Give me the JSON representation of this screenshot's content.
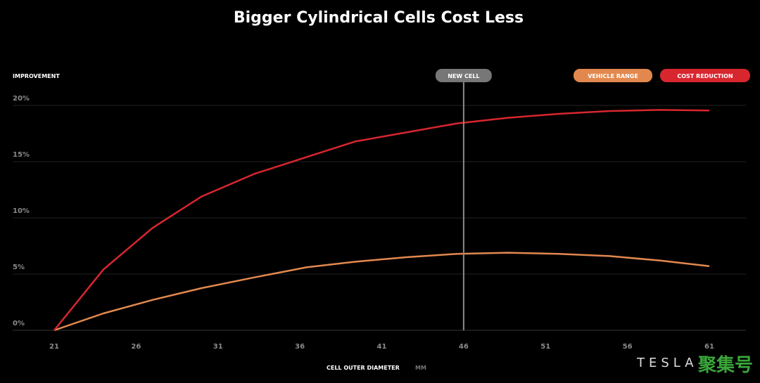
{
  "chart_data": {
    "type": "line",
    "title": "Bigger Cylindrical Cells Cost Less",
    "ylabel": "IMPROVEMENT",
    "xlabel": "CELL OUTER DIAMETER",
    "xlabel_unit": "MM",
    "xlim": [
      21,
      61
    ],
    "ylim": [
      0,
      20
    ],
    "xticks": [
      "21",
      "26",
      "31",
      "36",
      "41",
      "46",
      "51",
      "56",
      "61"
    ],
    "yticks": [
      "0%",
      "5%",
      "10%",
      "15%",
      "20%"
    ],
    "grid": true,
    "legend_position": "top-right",
    "annotation": {
      "label": "NEW CELL",
      "x": 46
    },
    "series": [
      {
        "name": "VEHICLE RANGE",
        "color": "#e2884f",
        "x": [
          21,
          24,
          27,
          30,
          33.2,
          36.4,
          39.4,
          42.5,
          45.6,
          48.7,
          51.8,
          54.9,
          58,
          61
        ],
        "y": [
          0,
          1.5,
          2.7,
          3.75,
          4.7,
          5.6,
          6.1,
          6.5,
          6.8,
          6.9,
          6.8,
          6.6,
          6.2,
          5.7
        ]
      },
      {
        "name": "COST REDUCTION",
        "color": "#d8262f",
        "x": [
          21,
          24,
          27,
          30,
          33.2,
          36.4,
          39.4,
          42.5,
          45.6,
          48.7,
          51.8,
          54.9,
          58,
          61
        ],
        "y": [
          0,
          5.4,
          9.1,
          11.9,
          13.9,
          15.4,
          16.8,
          17.6,
          18.4,
          18.9,
          19.25,
          19.5,
          19.6,
          19.55
        ]
      }
    ]
  },
  "logo": "TESLA",
  "watermark": "聚集号"
}
